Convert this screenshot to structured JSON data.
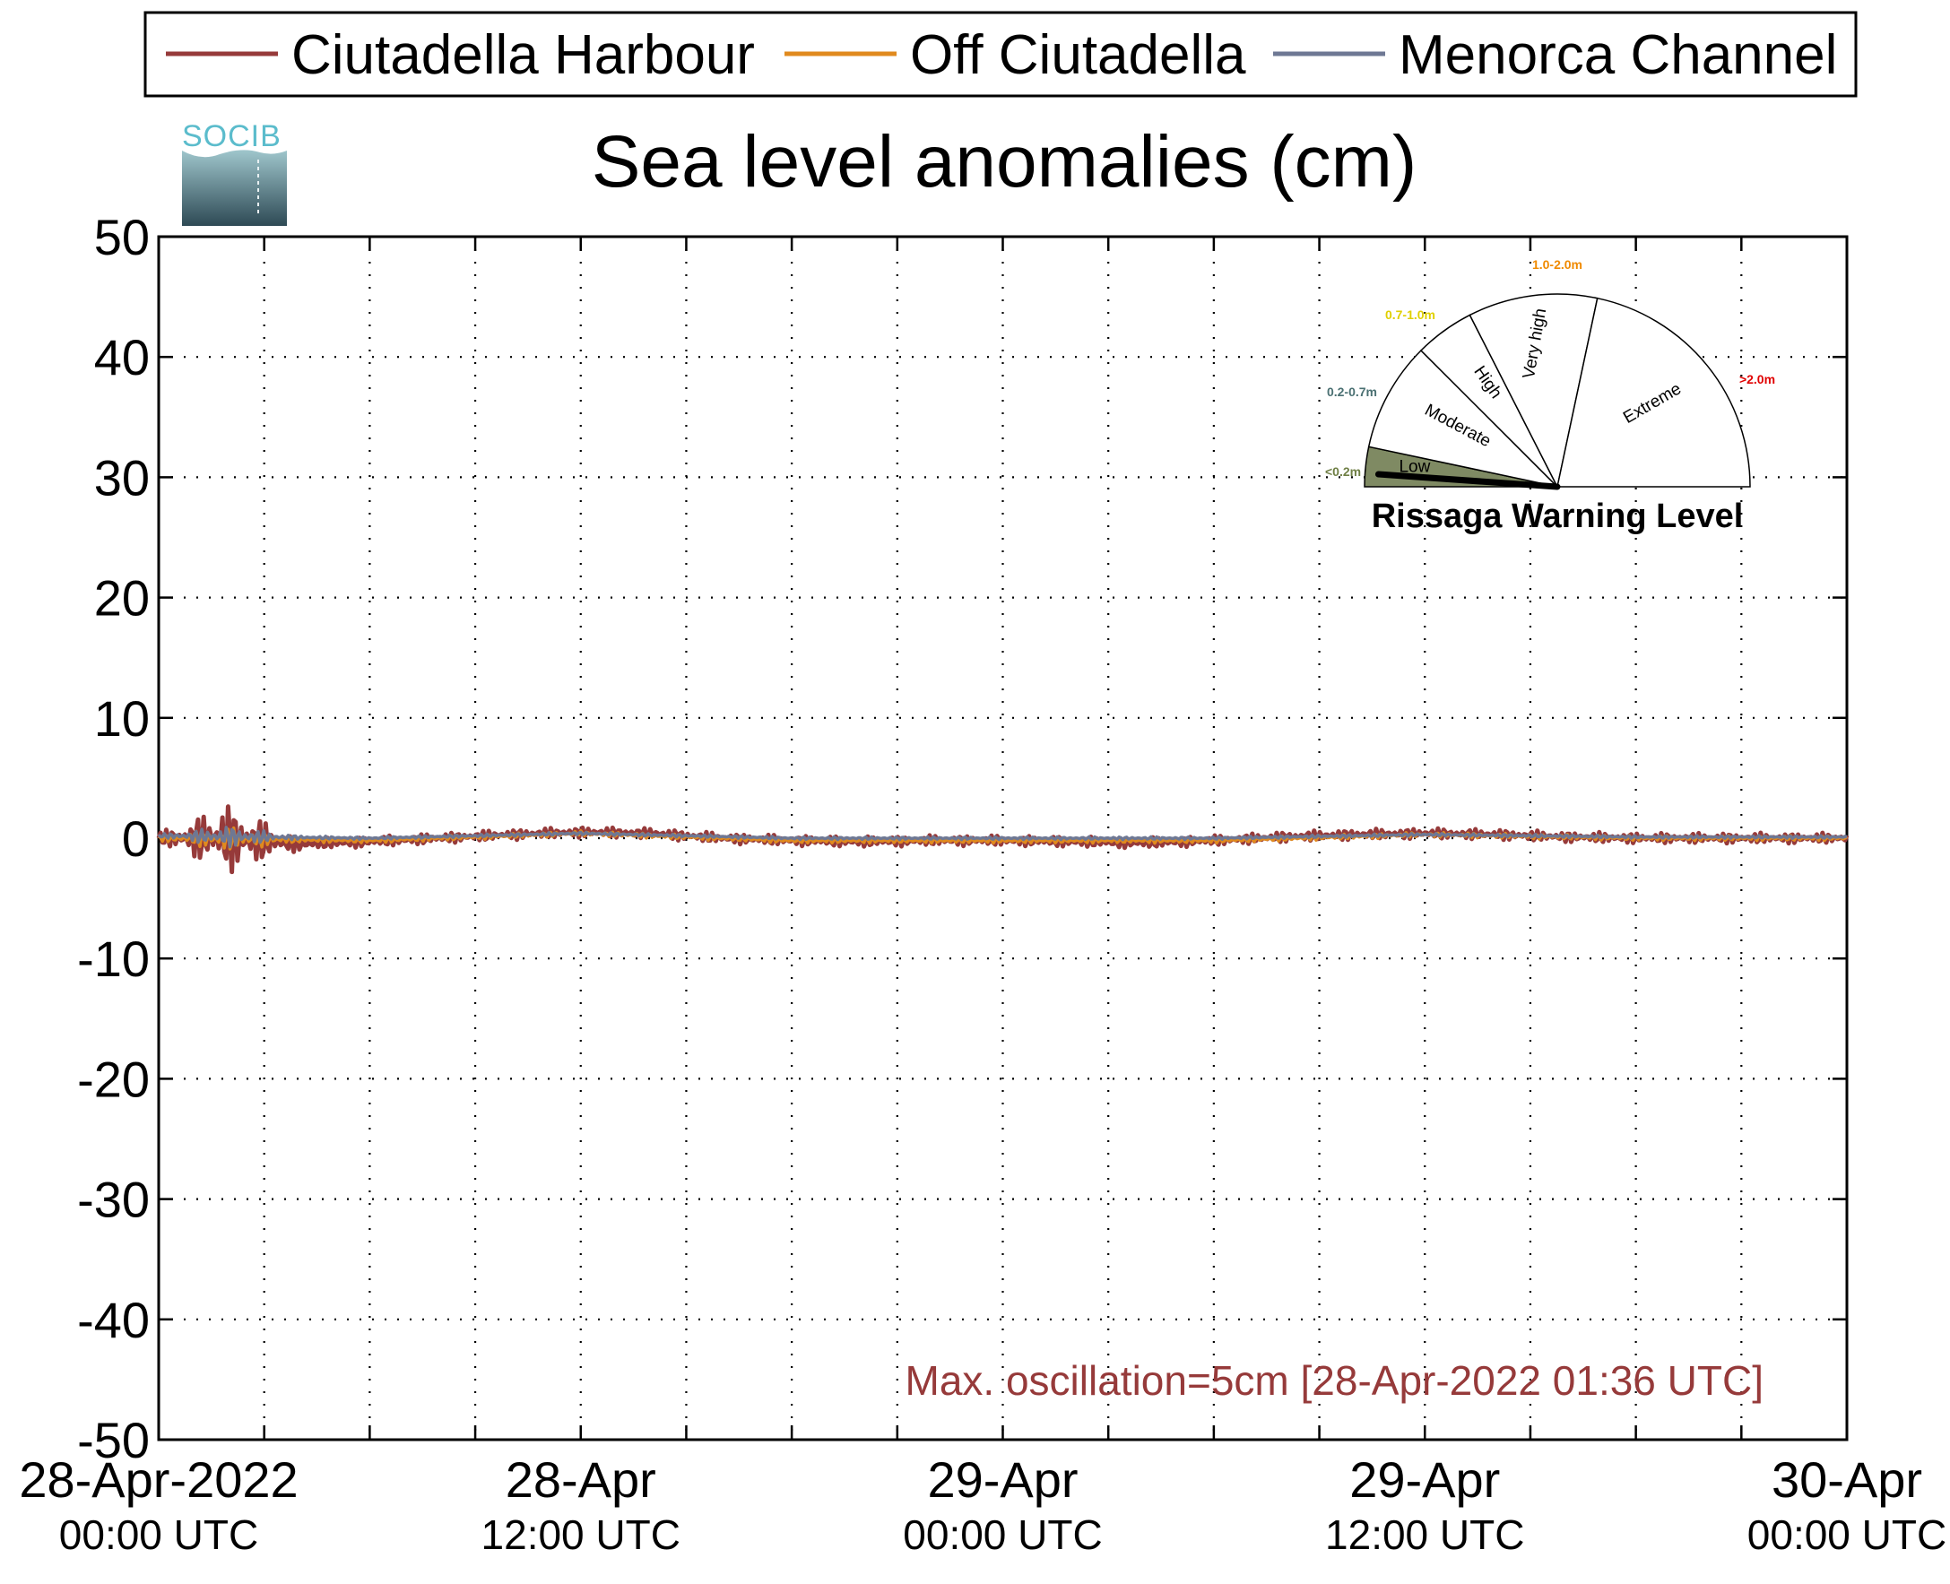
{
  "logo": {
    "text": "SOCIB"
  },
  "legend": [
    {
      "label": "Ciutadella Harbour",
      "color": "#963a3a"
    },
    {
      "label": "Off Ciutadella",
      "color": "#e08a1e"
    },
    {
      "label": "Menorca Channel",
      "color": "#6e7894"
    }
  ],
  "annotation": {
    "text": "Max. oscillation=5cm [28-Apr-2022 01:36 UTC]",
    "color": "#963a3a"
  },
  "gauge": {
    "title": "Rissaga Warning Level",
    "current_level": "Low",
    "segments": [
      {
        "label": "Low",
        "range": "<0.2m",
        "range_color": "#6f7f45",
        "fill": "#7f8a63"
      },
      {
        "label": "Moderate",
        "range": "0.2-0.7m",
        "range_color": "#4a7072",
        "fill": "#ffffff"
      },
      {
        "label": "High",
        "range": "0.7-1.0m",
        "range_color": "#e0d000",
        "fill": "#ffffff"
      },
      {
        "label": "Very high",
        "range": "1.0-2.0m",
        "range_color": "#f08a00",
        "fill": "#ffffff"
      },
      {
        "label": "Extreme",
        "range": ">2.0m",
        "range_color": "#e00000",
        "fill": "#ffffff"
      }
    ]
  },
  "chart_data": {
    "type": "line",
    "title": "Sea level anomalies (cm)",
    "xlabel": "",
    "ylabel": "",
    "ylim": [
      -50,
      50
    ],
    "yticks": [
      50,
      40,
      30,
      20,
      10,
      0,
      -10,
      -20,
      -30,
      -40,
      -50
    ],
    "ytick_labels": [
      "50",
      "40",
      "30",
      "20",
      "10",
      "0",
      "-10",
      "-20",
      "-30",
      "-40",
      "-50"
    ],
    "xlim": [
      "2022-04-28T00:00Z",
      "2022-04-30T00:00Z"
    ],
    "xticks": [
      {
        "line1": "28-Apr-2022",
        "line2": "00:00 UTC"
      },
      {
        "line1": "28-Apr",
        "line2": "12:00 UTC"
      },
      {
        "line1": "29-Apr",
        "line2": "00:00 UTC"
      },
      {
        "line1": "29-Apr",
        "line2": "12:00 UTC"
      },
      {
        "line1": "30-Apr",
        "line2": "00:00 UTC"
      }
    ],
    "grid": true,
    "legend_position": "top",
    "series": [
      {
        "name": "Ciutadella Harbour",
        "x": [
          "2022-04-28T00:00Z",
          "2022-04-28T02:00Z",
          "2022-04-28T04:00Z",
          "2022-04-28T06:00Z",
          "2022-04-28T08:00Z",
          "2022-04-28T10:00Z",
          "2022-04-28T12:00Z",
          "2022-04-28T14:00Z",
          "2022-04-28T16:00Z",
          "2022-04-28T18:00Z",
          "2022-04-28T20:00Z",
          "2022-04-28T22:00Z",
          "2022-04-29T00:00Z",
          "2022-04-29T02:00Z",
          "2022-04-29T04:00Z",
          "2022-04-29T06:00Z",
          "2022-04-29T08:00Z",
          "2022-04-29T10:00Z",
          "2022-04-29T12:00Z",
          "2022-04-29T14:00Z",
          "2022-04-29T16:00Z",
          "2022-04-29T18:00Z",
          "2022-04-29T20:00Z",
          "2022-04-29T22:00Z",
          "2022-04-30T00:00Z"
        ],
        "y": [
          0,
          0,
          -0.5,
          -0.3,
          0,
          0.3,
          0.5,
          0.4,
          0,
          -0.2,
          -0.3,
          -0.2,
          -0.2,
          -0.3,
          -0.4,
          -0.2,
          0.1,
          0.3,
          0.4,
          0.3,
          0.1,
          0,
          0,
          0,
          0
        ]
      },
      {
        "name": "Off Ciutadella",
        "x": [
          "2022-04-28T00:00Z",
          "2022-04-28T06:00Z",
          "2022-04-28T12:00Z",
          "2022-04-28T18:00Z",
          "2022-04-29T00:00Z",
          "2022-04-29T06:00Z",
          "2022-04-29T12:00Z",
          "2022-04-29T18:00Z",
          "2022-04-30T00:00Z"
        ],
        "y": [
          0,
          -0.2,
          0.4,
          -0.2,
          -0.2,
          -0.2,
          0.3,
          0,
          0
        ]
      },
      {
        "name": "Menorca Channel",
        "x": [
          "2022-04-28T00:00Z",
          "2022-04-28T06:00Z",
          "2022-04-28T12:00Z",
          "2022-04-28T18:00Z",
          "2022-04-29T00:00Z",
          "2022-04-29T06:00Z",
          "2022-04-29T12:00Z",
          "2022-04-29T18:00Z",
          "2022-04-30T00:00Z"
        ],
        "y": [
          0.2,
          0,
          0.4,
          0,
          0,
          0,
          0.3,
          0.1,
          0.1
        ]
      }
    ]
  }
}
